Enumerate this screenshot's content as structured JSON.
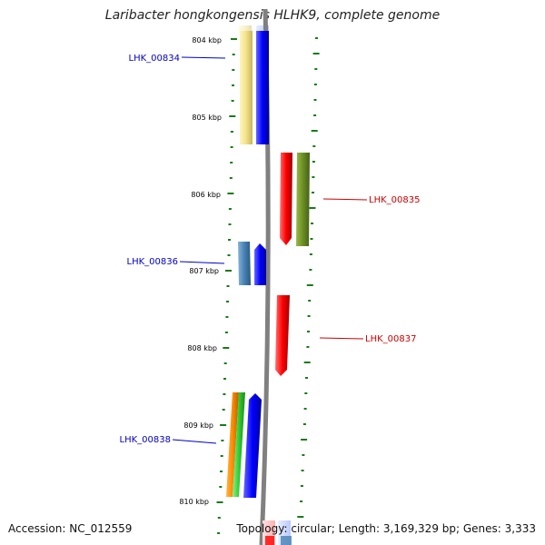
{
  "title": "Laribacter hongkongensis HLHK9, complete genome",
  "scale_unit": "kbp",
  "scale_labels": [
    "804 kbp",
    "805 kbp",
    "806 kbp",
    "807 kbp",
    "808 kbp",
    "809 kbp",
    "810 kbp"
  ],
  "gene_labels": {
    "forward": [
      "LHK_00834",
      "LHK_00836",
      "LHK_00838"
    ],
    "reverse": [
      "LHK_00835",
      "LHK_00837"
    ]
  },
  "colors": {
    "forward_label": "#0000cc",
    "reverse_label": "#cc0000",
    "backbone": "#808080",
    "ticks": "#1a7a1a",
    "gene_yellow": "#f2e08a",
    "gene_blue": "#0000ff",
    "gene_red": "#ff0000",
    "gene_olive": "#6b8e23",
    "gene_steelblue": "#4682b4",
    "gene_orange": "#ff8c00",
    "gene_green": "#32cd32"
  },
  "footer": {
    "accession": "Accession: NC_012559",
    "summary": "Topology: circular; Length: 3,169,329 bp; Genes: 3,333"
  }
}
